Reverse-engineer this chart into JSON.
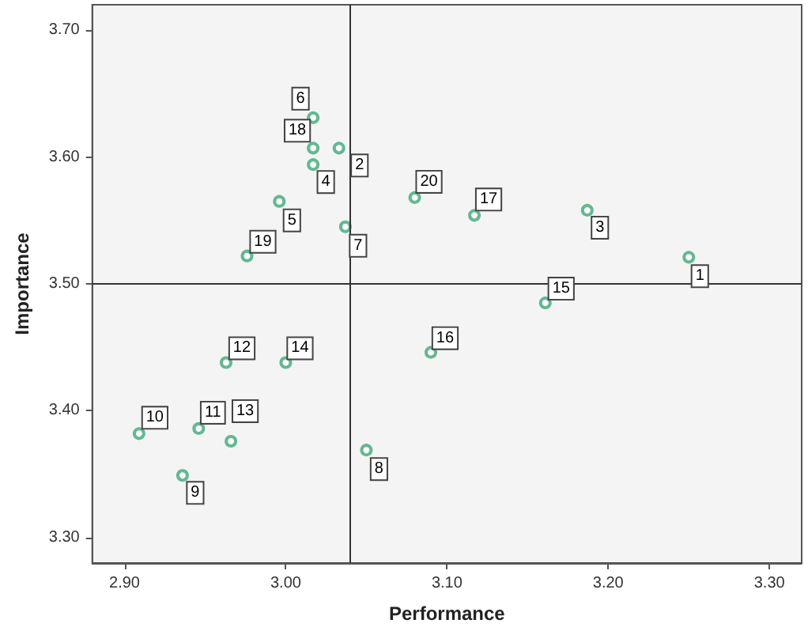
{
  "chart_data": {
    "type": "scatter",
    "xlabel": "Performance",
    "ylabel": "Importance",
    "x": [
      3.25,
      3.033,
      3.187,
      3.017,
      2.996,
      3.017,
      3.037,
      3.05,
      2.936,
      2.909,
      2.946,
      2.963,
      2.966,
      3.0,
      3.161,
      3.09,
      3.117,
      3.017,
      2.976,
      3.08
    ],
    "series": [
      {
        "color": "#3fa878",
        "values": [
          3.521,
          3.607,
          3.558,
          3.594,
          3.565,
          3.631,
          3.545,
          3.369,
          3.349,
          3.382,
          3.386,
          3.438,
          3.376,
          3.438,
          3.485,
          3.446,
          3.554,
          3.607,
          3.522,
          3.568
        ]
      }
    ],
    "annotations": [
      {
        "text": "1",
        "x": 3.25,
        "y": 3.521
      },
      {
        "text": "2",
        "x": 3.033,
        "y": 3.607
      },
      {
        "text": "3",
        "x": 3.187,
        "y": 3.558
      },
      {
        "text": "4",
        "x": 3.017,
        "y": 3.594
      },
      {
        "text": "5",
        "x": 2.996,
        "y": 3.565
      },
      {
        "text": "6",
        "x": 3.017,
        "y": 3.631
      },
      {
        "text": "7",
        "x": 3.037,
        "y": 3.545
      },
      {
        "text": "8",
        "x": 3.05,
        "y": 3.369
      },
      {
        "text": "9",
        "x": 2.936,
        "y": 3.349
      },
      {
        "text": "10",
        "x": 2.909,
        "y": 3.382
      },
      {
        "text": "11",
        "x": 2.946,
        "y": 3.386
      },
      {
        "text": "12",
        "x": 2.963,
        "y": 3.438
      },
      {
        "text": "13",
        "x": 2.966,
        "y": 3.376
      },
      {
        "text": "14",
        "x": 3.0,
        "y": 3.438
      },
      {
        "text": "15",
        "x": 3.161,
        "y": 3.485
      },
      {
        "text": "16",
        "x": 3.09,
        "y": 3.446
      },
      {
        "text": "17",
        "x": 3.117,
        "y": 3.554
      },
      {
        "text": "18",
        "x": 3.017,
        "y": 3.607
      },
      {
        "text": "19",
        "x": 2.976,
        "y": 3.522
      },
      {
        "text": "20",
        "x": 3.08,
        "y": 3.568
      }
    ],
    "xlim": [
      2.88,
      3.32
    ],
    "ylim": [
      3.28,
      3.72
    ],
    "xticks": [
      {
        "value": 2.9,
        "label": "2.90"
      },
      {
        "value": 3.0,
        "label": "3.00"
      },
      {
        "value": 3.1,
        "label": "3.10"
      },
      {
        "value": 3.2,
        "label": "3.20"
      },
      {
        "value": 3.3,
        "label": "3.30"
      }
    ],
    "yticks": [
      {
        "value": 3.3,
        "label": "3.30"
      },
      {
        "value": 3.4,
        "label": "3.40"
      },
      {
        "value": 3.5,
        "label": "3.50"
      },
      {
        "value": 3.6,
        "label": "3.60"
      },
      {
        "value": 3.7,
        "label": "3.70"
      }
    ],
    "ref_lines": [
      {
        "axis": "x",
        "value": 3.04,
        "color": "#333333"
      },
      {
        "axis": "y",
        "value": 3.5,
        "color": "#333333"
      }
    ],
    "grid": false,
    "marker": "circle"
  }
}
